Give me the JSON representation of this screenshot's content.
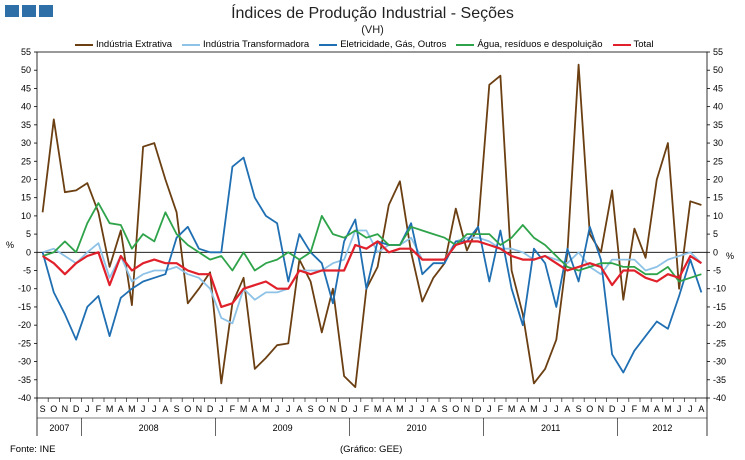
{
  "header": {
    "title": "Índices de Produção Industrial - Seções",
    "subtitle": "(VH)"
  },
  "footer": {
    "source": "Fonte: INE",
    "credit": "(Gráfico: GEE)"
  },
  "colors": {
    "extrativa": "#6b3f12",
    "transformadora": "#8ec2e6",
    "eletricidade": "#1f6fb2",
    "agua": "#2ea34a",
    "total": "#e0202a",
    "logo": "#2f6fa8"
  },
  "chart_data": {
    "type": "line",
    "title": "Índices de Produção Industrial - Seções",
    "subtitle": "(VH)",
    "ylabel_left": "%",
    "ylabel_right": "%",
    "ylim": [
      -40,
      55
    ],
    "yticks": [
      -40,
      -35,
      -30,
      -25,
      -20,
      -15,
      -10,
      -5,
      0,
      5,
      10,
      15,
      20,
      25,
      30,
      35,
      40,
      45,
      50,
      55
    ],
    "grid": false,
    "legend_position": "top",
    "month_labels": [
      "S",
      "O",
      "N",
      "D",
      "J",
      "F",
      "M",
      "A",
      "M",
      "J",
      "J",
      "A",
      "S",
      "O",
      "N",
      "D",
      "J",
      "F",
      "M",
      "A",
      "M",
      "J",
      "J",
      "A",
      "S",
      "O",
      "N",
      "D",
      "J",
      "F",
      "M",
      "A",
      "M",
      "J",
      "J",
      "A",
      "S",
      "O",
      "N",
      "D",
      "J",
      "F",
      "M",
      "A",
      "M",
      "J",
      "J",
      "A",
      "S",
      "O",
      "N",
      "D",
      "J",
      "F",
      "M",
      "A",
      "M",
      "J",
      "J",
      "A"
    ],
    "years": [
      {
        "label": "2007",
        "months": 4
      },
      {
        "label": "2008",
        "months": 12
      },
      {
        "label": "2009",
        "months": 12
      },
      {
        "label": "2010",
        "months": 12
      },
      {
        "label": "2011",
        "months": 12
      },
      {
        "label": "2012",
        "months": 8
      }
    ],
    "series": [
      {
        "name": "Indústria Extrativa",
        "key": "extrativa",
        "values": [
          11,
          36.5,
          16.5,
          17,
          19,
          11,
          -4,
          6,
          -14.5,
          29,
          30,
          20,
          11,
          -14,
          -10,
          -5.5,
          -36,
          -14,
          -7,
          -32,
          -29,
          -25.5,
          -25,
          -2,
          -8,
          -22,
          -10,
          -34,
          -37,
          -10,
          -4,
          13,
          19.5,
          0,
          -13.5,
          -7,
          -3,
          12,
          0.5,
          7,
          46,
          48.5,
          -5,
          -17,
          -36,
          -32,
          -24,
          0,
          51.5,
          5,
          0,
          17,
          -13,
          6.5,
          -1.5,
          20,
          30,
          -10,
          14,
          13
        ]
      },
      {
        "name": "Indústria Transformadora",
        "key": "transformadora",
        "values": [
          0,
          1,
          -1,
          -3,
          0,
          2.5,
          -7,
          -1,
          -8,
          -6,
          -5,
          -5,
          -4,
          -6,
          -7,
          -10,
          -18,
          -19.5,
          -10,
          -13,
          -11,
          -11,
          -10,
          -5,
          -5,
          -5,
          -3,
          -2,
          6,
          6,
          0,
          2,
          2,
          4,
          -2,
          -2,
          -2,
          3,
          4,
          4,
          3,
          1,
          1,
          0,
          -2,
          -1,
          -2,
          -3,
          0,
          -4,
          -6,
          -2,
          -2,
          -2,
          -5,
          -4,
          -2,
          -1,
          0,
          -3
        ]
      },
      {
        "name": "Eletricidade, Gás, Outros",
        "key": "eletricidade",
        "values": [
          0,
          -11,
          -17,
          -24,
          -15,
          -12,
          -23,
          -12.5,
          -10,
          -8,
          -7,
          -6,
          4,
          7,
          1,
          0,
          0,
          23.5,
          26,
          15,
          10,
          8,
          -8,
          5,
          0,
          -3,
          -14,
          3,
          9,
          -10,
          3,
          2,
          2,
          8,
          -6,
          -3,
          -3,
          3,
          3,
          7,
          -8,
          6,
          -10,
          -20,
          1,
          -3,
          -15,
          1,
          -8,
          7,
          -2,
          -28,
          -33,
          -27,
          -23,
          -19,
          -21,
          -12,
          -2,
          -11
        ]
      },
      {
        "name": "Água, resíduos e despoluição",
        "key": "agua",
        "values": [
          -1,
          0,
          3,
          0,
          8,
          13.5,
          8,
          7.5,
          1,
          5,
          3,
          11,
          5,
          2,
          0,
          -2,
          -1,
          -5,
          0,
          -5,
          -3,
          -2,
          0,
          -2,
          0,
          10,
          5,
          4,
          6,
          4,
          5,
          2,
          2,
          7,
          6,
          5,
          4,
          2,
          5,
          5,
          5,
          2,
          4,
          7.5,
          4,
          2,
          -1,
          -4,
          -5,
          -4,
          -3,
          -3,
          -4,
          -4,
          -6,
          -6,
          -4,
          -8,
          -7,
          -6
        ]
      },
      {
        "name": "Total",
        "key": "total",
        "values": [
          -1,
          -3,
          -6,
          -3,
          -1,
          0,
          -9,
          -1,
          -5,
          -3,
          -2,
          -3,
          -3,
          -5,
          -6,
          -6,
          -15,
          -14,
          -10,
          -9,
          -8,
          -10,
          -10,
          -5,
          -6,
          -5,
          -5,
          -5,
          2,
          1,
          3,
          0,
          1,
          1,
          -2,
          -2,
          -2,
          2,
          3,
          3,
          2,
          1,
          -1,
          -2,
          -2,
          -1,
          -3,
          -5,
          -4,
          -3,
          -4,
          -9,
          -5,
          -5,
          -7,
          -8,
          -6,
          -7,
          -1,
          -3
        ]
      }
    ]
  }
}
